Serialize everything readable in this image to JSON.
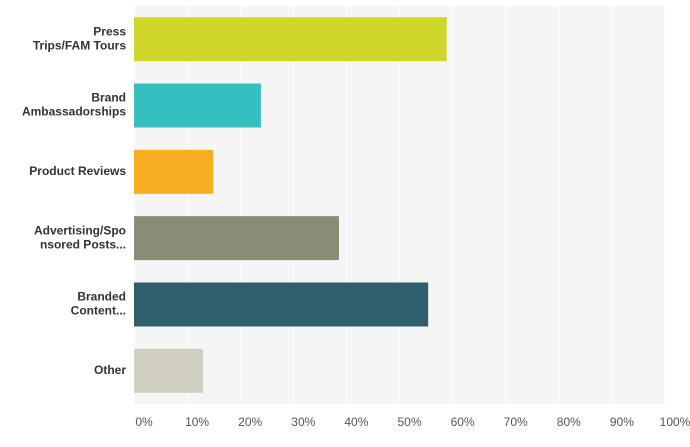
{
  "chart_data": {
    "type": "hbar",
    "categories": [
      [
        "Press",
        "Trips/FAM Tours"
      ],
      [
        "Brand",
        "Ambassadorships"
      ],
      [
        "Product Reviews"
      ],
      [
        "Advertising/Spo",
        "nsored Posts..."
      ],
      [
        "Branded",
        "Content..."
      ],
      [
        "Other"
      ]
    ],
    "values": [
      58.9,
      23.9,
      14.9,
      38.6,
      55.4,
      13.0
    ],
    "colors": [
      "#d0d62a",
      "#35bfc1",
      "#f7ae22",
      "#8b8c78",
      "#2e5f6a",
      "#d0cfc0"
    ],
    "xlim": [
      0,
      100
    ],
    "xticks": [
      {
        "value": 0,
        "label": "0%"
      },
      {
        "value": 10,
        "label": "10%"
      },
      {
        "value": 20,
        "label": "20%"
      },
      {
        "value": 30,
        "label": "30%"
      },
      {
        "value": 40,
        "label": "40%"
      },
      {
        "value": 50,
        "label": "50%"
      },
      {
        "value": 60,
        "label": "60%"
      },
      {
        "value": 70,
        "label": "70%"
      },
      {
        "value": 80,
        "label": "80%"
      },
      {
        "value": 90,
        "label": "90%"
      },
      {
        "value": 100,
        "label": "100%"
      }
    ],
    "grid": true
  }
}
